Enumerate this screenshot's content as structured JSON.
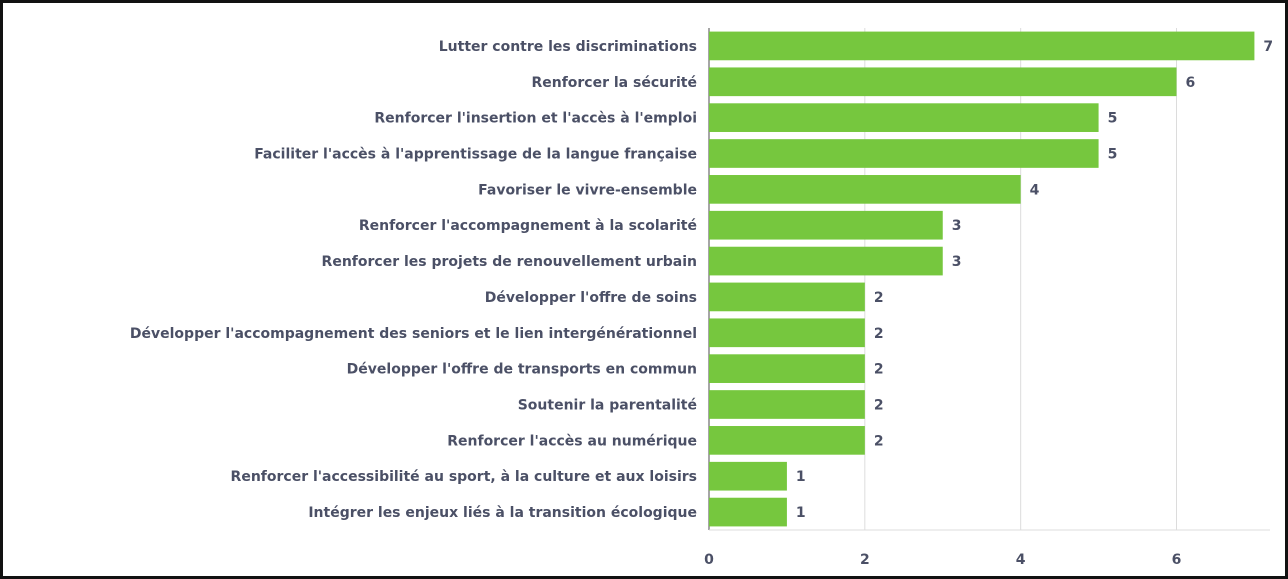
{
  "chart_data": {
    "type": "bar",
    "orientation": "horizontal",
    "categories": [
      "Lutter contre les discriminations",
      "Renforcer la sécurité",
      "Renforcer l'insertion et l'accès à l'emploi",
      "Faciliter l'accès à l'apprentissage de la langue française",
      "Favoriser le vivre-ensemble",
      "Renforcer l'accompagnement à la scolarité",
      "Renforcer les projets de renouvellement urbain",
      "Développer l'offre de soins",
      "Développer l'accompagnement des seniors et le lien intergénérationnel",
      "Développer l'offre de transports en commun",
      "Soutenir la parentalité",
      "Renforcer l'accès au numérique",
      "Renforcer l'accessibilité au sport, à la culture et aux loisirs",
      "Intégrer les enjeux liés à la transition écologique"
    ],
    "values": [
      7,
      6,
      5,
      5,
      4,
      3,
      3,
      2,
      2,
      2,
      2,
      2,
      1,
      1
    ],
    "color": "#76c73e",
    "xlim": [
      0,
      7.2
    ],
    "xticks": [
      0,
      2,
      4,
      6
    ],
    "grid": true
  }
}
